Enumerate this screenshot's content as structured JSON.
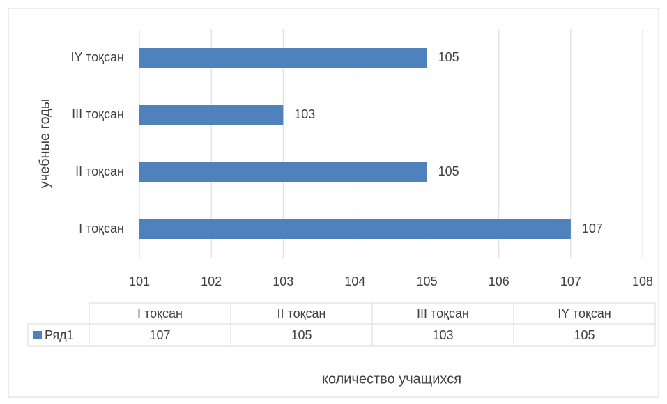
{
  "chart_data": {
    "type": "bar",
    "orientation": "horizontal",
    "xlabel": "количество учащихся",
    "ylabel": "учебные годы",
    "categories": [
      "I тоқсан",
      "II тоқсан",
      "III тоқсан",
      "IY тоқсан"
    ],
    "series": [
      {
        "name": "Ряд1",
        "color": "#4f81bd",
        "values": [
          107,
          105,
          103,
          105
        ]
      }
    ],
    "xlim": [
      101,
      108
    ],
    "xticks": [
      101,
      102,
      103,
      104,
      105,
      106,
      107,
      108
    ],
    "grid": true,
    "data_table": true
  }
}
